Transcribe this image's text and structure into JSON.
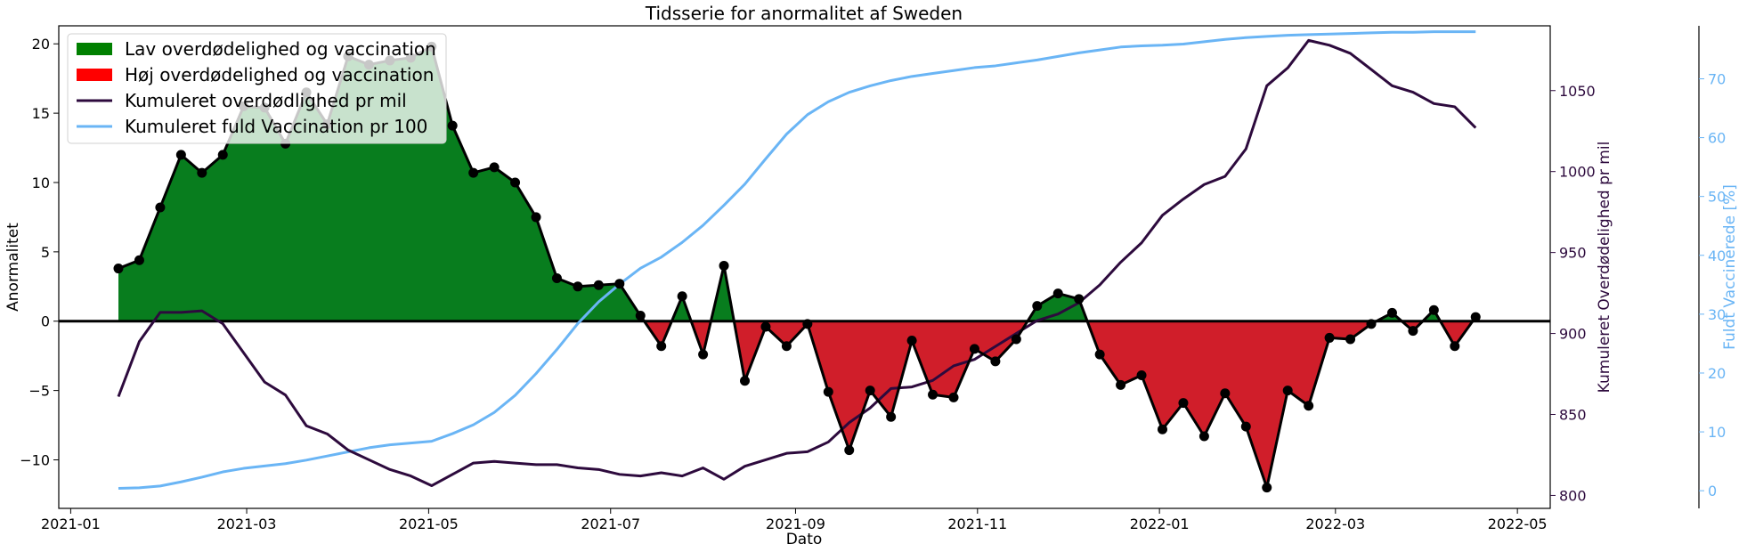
{
  "chart_data": {
    "type": "area",
    "title": "Tidsserie for anormalitet af Sweden",
    "xlabel": "Dato",
    "ylabel": "Anormalitet",
    "ylabel_right": "Kumuleret Overdødelighed pr mil",
    "ylabel_right2": "Fuldt Vaccinerede [%]",
    "ylim": [
      -13.5,
      21.3
    ],
    "ylim_right": [
      792,
      1090
    ],
    "ylim_right2": [
      -3,
      79
    ],
    "xlim": [
      "2020-12-28",
      "2022-05-12"
    ],
    "x_ticks": [
      "2021-01",
      "2021-03",
      "2021-05",
      "2021-07",
      "2021-09",
      "2021-11",
      "2022-01",
      "2022-03",
      "2022-05"
    ],
    "y_ticks": [
      -10,
      -5,
      0,
      5,
      10,
      15,
      20
    ],
    "y_ticks_right": [
      800,
      850,
      900,
      950,
      1000,
      1050
    ],
    "y_ticks_right2": [
      0,
      10,
      20,
      30,
      40,
      50,
      60,
      70
    ],
    "grid": false,
    "legend_position": "top-left",
    "legend": [
      {
        "label": "Lav overdødelighed og vaccination",
        "kind": "patch",
        "color": "#008000"
      },
      {
        "label": "Høj overdødelighed og vaccination",
        "kind": "patch",
        "color": "#ff0000"
      },
      {
        "label": "Kumuleret overdødlighed pr mil",
        "kind": "line",
        "color": "#2d0a3d"
      },
      {
        "label": "Kumuleret fuld Vaccination pr 100",
        "kind": "line",
        "color": "#6ab5f5"
      }
    ],
    "colors": {
      "positive_fill": "#087d1e",
      "negative_fill": "#d01e2a",
      "anomaly_line": "#000000",
      "mortality_line": "#2d0a3d",
      "vaccination_line": "#6ab5f5"
    },
    "x": [
      "2021-01-17",
      "2021-01-24",
      "2021-01-31",
      "2021-02-07",
      "2021-02-14",
      "2021-02-21",
      "2021-02-28",
      "2021-03-07",
      "2021-03-14",
      "2021-03-21",
      "2021-03-28",
      "2021-04-04",
      "2021-04-11",
      "2021-04-18",
      "2021-04-25",
      "2021-05-02",
      "2021-05-09",
      "2021-05-16",
      "2021-05-23",
      "2021-05-30",
      "2021-06-06",
      "2021-06-13",
      "2021-06-20",
      "2021-06-27",
      "2021-07-04",
      "2021-07-11",
      "2021-07-18",
      "2021-07-25",
      "2021-08-01",
      "2021-08-08",
      "2021-08-15",
      "2021-08-22",
      "2021-08-29",
      "2021-09-05",
      "2021-09-12",
      "2021-09-19",
      "2021-09-26",
      "2021-10-03",
      "2021-10-10",
      "2021-10-17",
      "2021-10-24",
      "2021-10-31",
      "2021-11-07",
      "2021-11-14",
      "2021-11-21",
      "2021-11-28",
      "2021-12-05",
      "2021-12-12",
      "2021-12-19",
      "2021-12-26",
      "2022-01-02",
      "2022-01-09",
      "2022-01-16",
      "2022-01-23",
      "2022-01-30",
      "2022-02-06",
      "2022-02-13",
      "2022-02-20",
      "2022-02-27",
      "2022-03-06",
      "2022-03-13",
      "2022-03-20",
      "2022-03-27",
      "2022-04-03",
      "2022-04-10",
      "2022-04-17"
    ],
    "series": [
      {
        "name": "Anormalitet",
        "axis": "left",
        "values": [
          3.8,
          4.4,
          8.2,
          12.0,
          10.7,
          12.0,
          15.5,
          15.4,
          12.8,
          16.5,
          14.2,
          19.1,
          18.5,
          18.8,
          19.0,
          19.8,
          14.1,
          10.7,
          11.1,
          10.0,
          7.5,
          3.1,
          2.5,
          2.6,
          2.7,
          0.4,
          -1.8,
          1.8,
          -2.4,
          4.0,
          -4.3,
          -0.4,
          -1.8,
          -0.2,
          -5.1,
          -9.3,
          -5.0,
          -6.9,
          -1.4,
          -5.3,
          -5.5,
          -2.0,
          -2.9,
          -1.3,
          1.1,
          2.0,
          1.6,
          -2.4,
          -4.6,
          -3.9,
          -7.8,
          -5.9,
          -8.3,
          -5.2,
          -7.6,
          -12.0,
          -5.0,
          -6.1,
          -1.2,
          -1.3,
          -0.2,
          0.6,
          -0.7,
          0.8,
          -1.8,
          0.3
        ]
      },
      {
        "name": "Kumuleret overdødlighed pr mil",
        "axis": "right",
        "values": [
          861,
          895,
          913,
          913,
          914,
          906,
          888,
          870,
          862,
          843,
          838,
          828,
          822,
          816,
          812,
          806,
          813,
          820,
          821,
          820,
          819,
          819,
          817,
          816,
          813,
          812,
          814,
          812,
          817,
          810,
          818,
          822,
          826,
          827,
          833,
          845,
          854,
          866,
          867,
          871,
          880,
          884,
          892,
          900,
          908,
          912,
          919,
          930,
          944,
          956,
          973,
          983,
          992,
          997,
          1014,
          1053,
          1064,
          1081,
          1078,
          1073,
          1063,
          1053,
          1049,
          1042,
          1040,
          1027
        ]
      },
      {
        "name": "Kumuleret fuld Vaccination pr 100",
        "axis": "right2",
        "values": [
          0.4,
          0.5,
          0.8,
          1.5,
          2.3,
          3.2,
          3.8,
          4.2,
          4.6,
          5.2,
          5.9,
          6.6,
          7.3,
          7.8,
          8.1,
          8.4,
          9.7,
          11.2,
          13.3,
          16.2,
          19.9,
          24.0,
          28.4,
          32.1,
          35.1,
          37.8,
          39.7,
          42.2,
          45.1,
          48.5,
          52.1,
          56.4,
          60.6,
          63.9,
          66.1,
          67.7,
          68.8,
          69.7,
          70.4,
          70.9,
          71.4,
          71.9,
          72.2,
          72.7,
          73.2,
          73.8,
          74.4,
          74.9,
          75.4,
          75.6,
          75.7,
          75.9,
          76.3,
          76.7,
          77.0,
          77.2,
          77.4,
          77.5,
          77.6,
          77.7,
          77.8,
          77.9,
          77.9,
          78.0,
          78.0,
          78.0
        ]
      }
    ]
  }
}
